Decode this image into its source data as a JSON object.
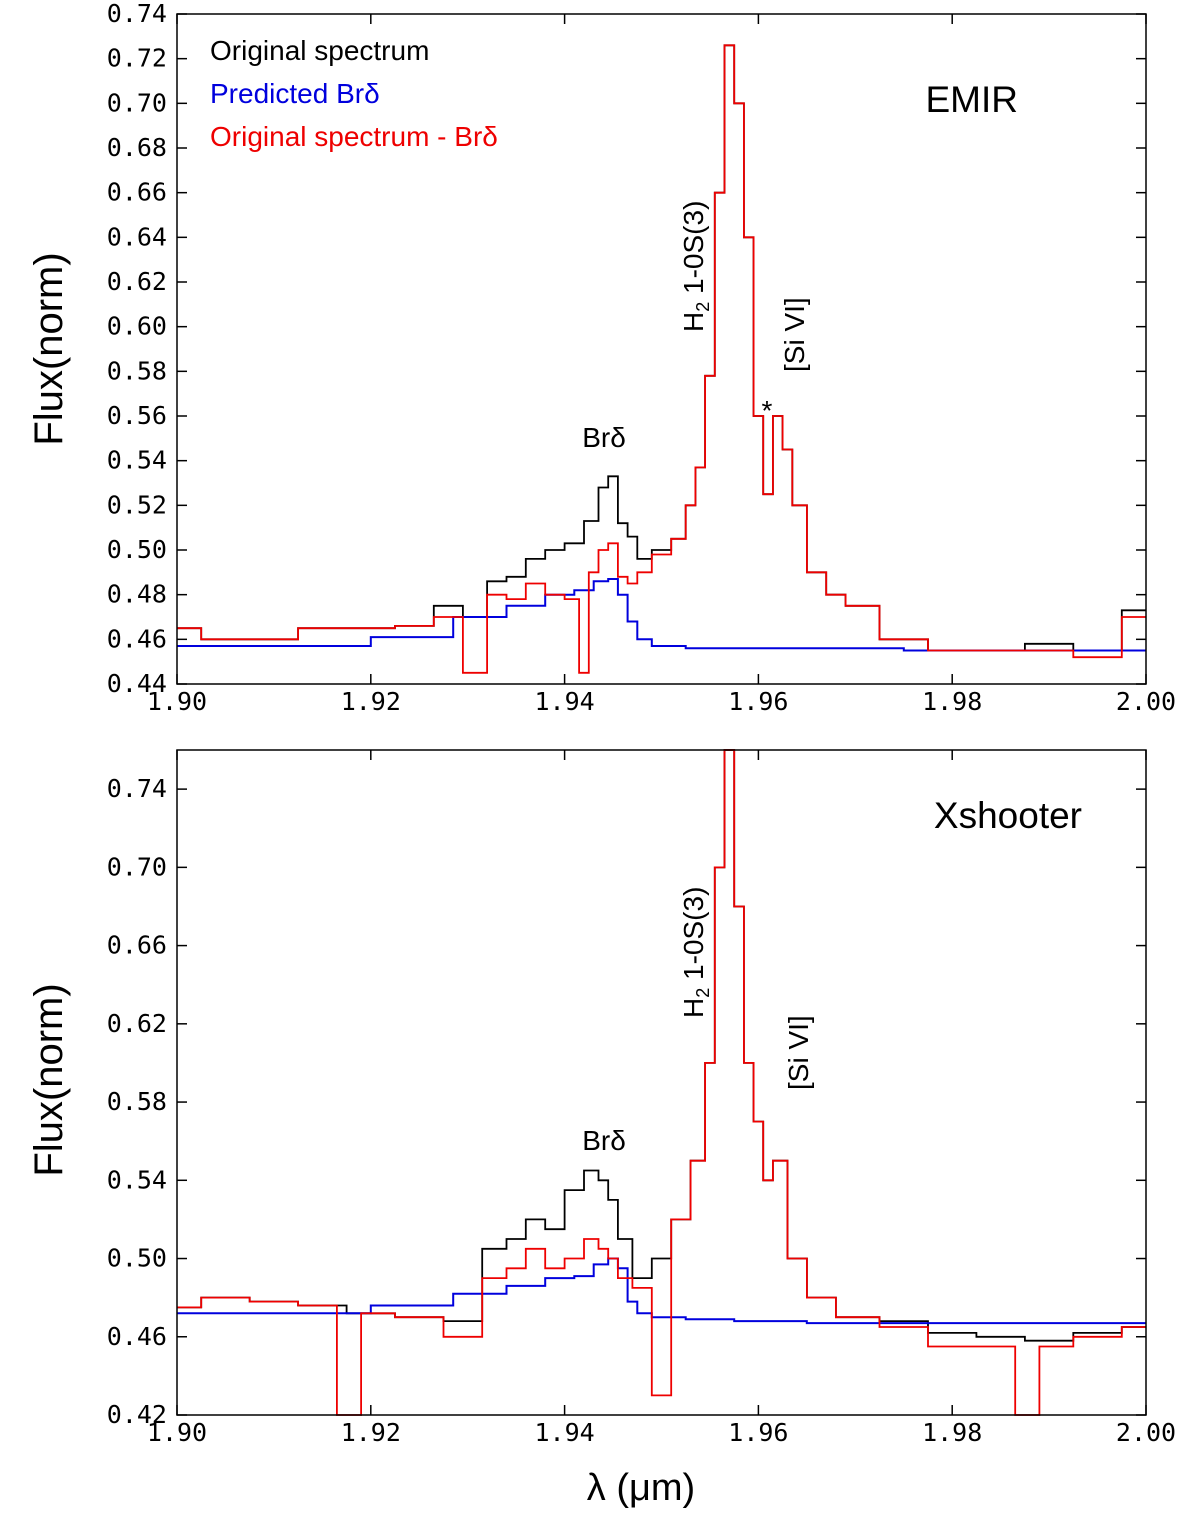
{
  "figure": {
    "xlabel": "λ (μm)",
    "colors": {
      "original": "#000000",
      "predicted": "#0000dd",
      "subtracted": "#ee0000"
    }
  },
  "chart_data": [
    {
      "type": "line",
      "title": "EMIR",
      "ylabel": "Flux(norm)",
      "xlim": [
        1.9,
        2.0
      ],
      "ylim": [
        0.44,
        0.74
      ],
      "xticks": [
        1.9,
        1.92,
        1.94,
        1.96,
        1.98,
        2.0
      ],
      "xtick_labels": [
        "1.90",
        "1.92",
        "1.94",
        "1.96",
        "1.98",
        "2.00"
      ],
      "yticks": [
        0.44,
        0.46,
        0.48,
        0.5,
        0.52,
        0.54,
        0.56,
        0.58,
        0.6,
        0.62,
        0.64,
        0.66,
        0.68,
        0.7,
        0.72,
        0.74
      ],
      "ytick_labels": [
        "0.44",
        "0.46",
        "0.48",
        "0.50",
        "0.52",
        "0.54",
        "0.56",
        "0.58",
        "0.60",
        "0.62",
        "0.64",
        "0.66",
        "0.68",
        "0.70",
        "0.72",
        "0.74"
      ],
      "legend": [
        "Original spectrum",
        "Predicted Brδ",
        "Original spectrum - Brδ"
      ],
      "annotations": {
        "brd": "Brδ",
        "h2_main": "H",
        "h2_sub": "2",
        "h2_rest": " 1-0S(3)",
        "sivi": "[Si VI]",
        "star": "*"
      },
      "series": [
        {
          "name": "Original spectrum",
          "x": [
            1.9,
            1.905,
            1.91,
            1.915,
            1.92,
            1.925,
            1.928,
            1.931,
            1.933,
            1.935,
            1.937,
            1.939,
            1.941,
            1.943,
            1.944,
            1.945,
            1.946,
            1.947,
            1.948,
            1.95,
            1.952,
            1.953,
            1.954,
            1.955,
            1.956,
            1.957,
            1.958,
            1.959,
            1.96,
            1.961,
            1.962,
            1.963,
            1.964,
            1.966,
            1.968,
            1.97,
            1.975,
            1.98,
            1.985,
            1.99,
            1.995,
            2.0
          ],
          "values": [
            0.465,
            0.46,
            0.46,
            0.465,
            0.465,
            0.466,
            0.475,
            0.47,
            0.486,
            0.488,
            0.496,
            0.5,
            0.503,
            0.513,
            0.528,
            0.533,
            0.512,
            0.506,
            0.496,
            0.5,
            0.505,
            0.52,
            0.537,
            0.578,
            0.66,
            0.726,
            0.7,
            0.64,
            0.56,
            0.525,
            0.56,
            0.545,
            0.52,
            0.49,
            0.48,
            0.475,
            0.46,
            0.455,
            0.455,
            0.458,
            0.455,
            0.473
          ]
        },
        {
          "name": "Predicted Brδ",
          "x": [
            1.9,
            1.915,
            1.925,
            1.932,
            1.936,
            1.94,
            1.942,
            1.944,
            1.945,
            1.946,
            1.947,
            1.948,
            1.95,
            1.955,
            1.96,
            1.97,
            1.98,
            1.99,
            2.0
          ],
          "values": [
            0.457,
            0.457,
            0.461,
            0.47,
            0.475,
            0.48,
            0.482,
            0.486,
            0.487,
            0.48,
            0.468,
            0.46,
            0.457,
            0.456,
            0.456,
            0.456,
            0.455,
            0.455,
            0.455
          ]
        },
        {
          "name": "Original spectrum - Brδ",
          "x": [
            1.9,
            1.905,
            1.91,
            1.915,
            1.92,
            1.925,
            1.928,
            1.931,
            1.933,
            1.935,
            1.937,
            1.939,
            1.941,
            1.942,
            1.943,
            1.944,
            1.945,
            1.946,
            1.947,
            1.948,
            1.95,
            1.952,
            1.953,
            1.954,
            1.955,
            1.956,
            1.957,
            1.958,
            1.959,
            1.96,
            1.961,
            1.962,
            1.963,
            1.964,
            1.966,
            1.968,
            1.97,
            1.975,
            1.98,
            1.985,
            1.99,
            1.995,
            2.0
          ],
          "values": [
            0.465,
            0.46,
            0.46,
            0.465,
            0.465,
            0.466,
            0.47,
            0.445,
            0.48,
            0.478,
            0.485,
            0.48,
            0.478,
            0.445,
            0.49,
            0.5,
            0.503,
            0.488,
            0.485,
            0.49,
            0.498,
            0.505,
            0.52,
            0.537,
            0.578,
            0.66,
            0.726,
            0.7,
            0.64,
            0.56,
            0.525,
            0.56,
            0.545,
            0.52,
            0.49,
            0.48,
            0.475,
            0.46,
            0.455,
            0.455,
            0.455,
            0.452,
            0.47
          ]
        }
      ]
    },
    {
      "type": "line",
      "title": "Xshooter",
      "ylabel": "Flux(norm)",
      "xlim": [
        1.9,
        2.0
      ],
      "ylim": [
        0.42,
        0.76
      ],
      "xticks": [
        1.9,
        1.92,
        1.94,
        1.96,
        1.98,
        2.0
      ],
      "xtick_labels": [
        "1.90",
        "1.92",
        "1.94",
        "1.96",
        "1.98",
        "2.00"
      ],
      "yticks": [
        0.42,
        0.46,
        0.5,
        0.54,
        0.58,
        0.62,
        0.66,
        0.7,
        0.74
      ],
      "ytick_labels": [
        "0.42",
        "0.46",
        "0.50",
        "0.54",
        "0.58",
        "0.62",
        "0.66",
        "0.70",
        "0.74"
      ],
      "annotations": {
        "brd": "Brδ",
        "h2_main": "H",
        "h2_sub": "2",
        "h2_rest": " 1-0S(3)",
        "sivi": "[Si VI]"
      },
      "series": [
        {
          "name": "Original spectrum",
          "x": [
            1.9,
            1.905,
            1.91,
            1.915,
            1.92,
            1.925,
            1.93,
            1.933,
            1.935,
            1.937,
            1.939,
            1.941,
            1.943,
            1.944,
            1.945,
            1.946,
            1.948,
            1.95,
            1.952,
            1.954,
            1.955,
            1.956,
            1.957,
            1.958,
            1.959,
            1.96,
            1.961,
            1.962,
            1.964,
            1.966,
            1.97,
            1.975,
            1.98,
            1.985,
            1.99,
            1.995,
            2.0
          ],
          "values": [
            0.475,
            0.48,
            0.478,
            0.476,
            0.472,
            0.47,
            0.468,
            0.505,
            0.51,
            0.52,
            0.515,
            0.535,
            0.545,
            0.54,
            0.53,
            0.51,
            0.49,
            0.5,
            0.52,
            0.55,
            0.6,
            0.7,
            0.76,
            0.68,
            0.6,
            0.57,
            0.54,
            0.55,
            0.5,
            0.48,
            0.47,
            0.468,
            0.462,
            0.46,
            0.458,
            0.462,
            0.465
          ]
        },
        {
          "name": "Predicted Brδ",
          "x": [
            1.9,
            1.915,
            1.925,
            1.932,
            1.936,
            1.94,
            1.942,
            1.944,
            1.945,
            1.946,
            1.947,
            1.948,
            1.95,
            1.955,
            1.96,
            1.97,
            1.98,
            1.99,
            2.0
          ],
          "values": [
            0.472,
            0.472,
            0.476,
            0.482,
            0.486,
            0.49,
            0.491,
            0.497,
            0.5,
            0.495,
            0.478,
            0.472,
            0.47,
            0.469,
            0.468,
            0.467,
            0.467,
            0.467,
            0.467
          ]
        },
        {
          "name": "Original spectrum - Brδ",
          "x": [
            1.9,
            1.905,
            1.91,
            1.915,
            1.918,
            1.92,
            1.925,
            1.93,
            1.933,
            1.935,
            1.937,
            1.939,
            1.941,
            1.943,
            1.944,
            1.945,
            1.946,
            1.948,
            1.95,
            1.952,
            1.954,
            1.955,
            1.956,
            1.957,
            1.958,
            1.959,
            1.96,
            1.961,
            1.962,
            1.964,
            1.966,
            1.97,
            1.975,
            1.98,
            1.985,
            1.988,
            1.99,
            1.995,
            2.0
          ],
          "values": [
            0.475,
            0.48,
            0.478,
            0.476,
            0.42,
            0.472,
            0.47,
            0.46,
            0.49,
            0.495,
            0.505,
            0.495,
            0.5,
            0.51,
            0.505,
            0.5,
            0.49,
            0.485,
            0.43,
            0.52,
            0.55,
            0.6,
            0.7,
            0.76,
            0.68,
            0.6,
            0.57,
            0.54,
            0.55,
            0.5,
            0.48,
            0.47,
            0.465,
            0.455,
            0.455,
            0.42,
            0.455,
            0.46,
            0.465
          ]
        }
      ]
    }
  ]
}
